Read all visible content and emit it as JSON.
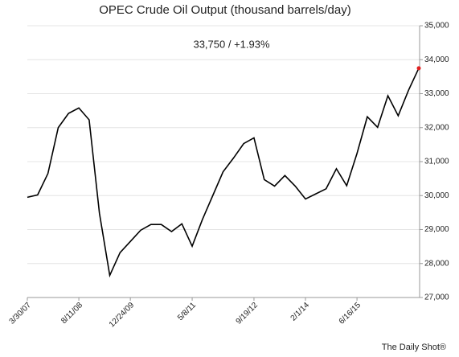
{
  "chart_data": {
    "type": "line",
    "title": "OPEC Crude Oil Output  (thousand barrels/day)",
    "annotation": "33,750  /  +1.93%",
    "source": "The Daily Shot®",
    "categories": [
      "3/30/07",
      null,
      null,
      null,
      null,
      "8/11/08",
      null,
      null,
      null,
      null,
      "12/24/09",
      null,
      null,
      null,
      null,
      null,
      "5/8/11",
      null,
      null,
      null,
      null,
      null,
      "9/19/12",
      null,
      null,
      null,
      null,
      "2/1/14",
      null,
      null,
      null,
      null,
      "6/16/15",
      null,
      null,
      null,
      null,
      null,
      null
    ],
    "values": [
      29950,
      30020,
      30650,
      32000,
      32420,
      32580,
      32230,
      29480,
      27650,
      28320,
      28650,
      28980,
      29150,
      29150,
      28940,
      29170,
      28510,
      29300,
      30000,
      30700,
      31100,
      31530,
      31700,
      30470,
      30280,
      30590,
      30280,
      29900,
      30050,
      30200,
      30790,
      30290,
      31240,
      32320,
      32010,
      32940,
      32350,
      33100,
      33750
    ],
    "color": "#000000",
    "highlight_color": "#e02020",
    "ylim": [
      27000,
      35000
    ],
    "yticks": [
      {
        "value": 27000,
        "label": "27,000"
      },
      {
        "value": 28000,
        "label": "28,000"
      },
      {
        "value": 29000,
        "label": "29,000"
      },
      {
        "value": 30000,
        "label": "30,000"
      },
      {
        "value": 31000,
        "label": "31,000"
      },
      {
        "value": 32000,
        "label": "32,000"
      },
      {
        "value": 33000,
        "label": "33,000"
      },
      {
        "value": 34000,
        "label": "34,000"
      },
      {
        "value": 35000,
        "label": "35,000"
      }
    ],
    "grid": true
  }
}
